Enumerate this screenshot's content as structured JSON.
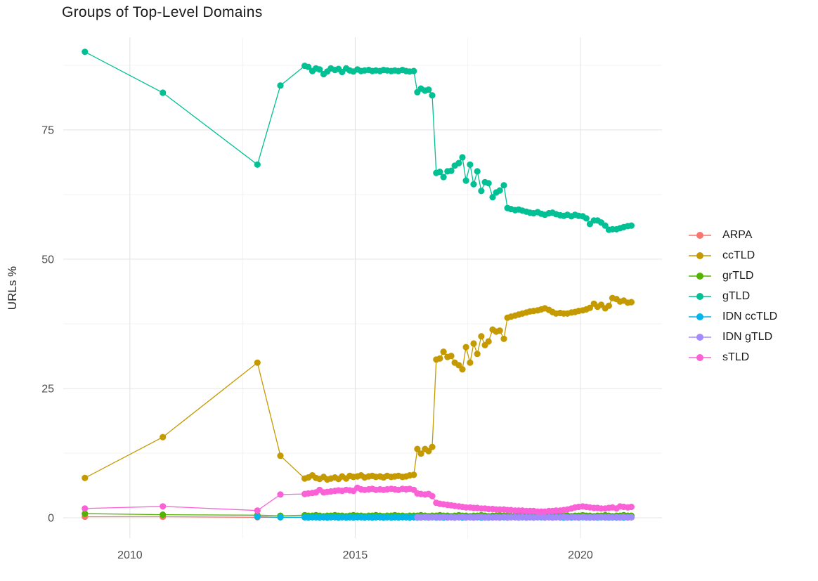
{
  "chart_data": {
    "type": "line",
    "title": "Groups of Top-Level Domains",
    "xlabel": "",
    "ylabel": "URLs %",
    "grid": true,
    "legend_position": "right",
    "x_ticks": [
      2010,
      2015,
      2020
    ],
    "x_minor_ticks": [
      2012.5,
      2017.5
    ],
    "y_ticks": [
      0,
      25,
      50,
      75
    ],
    "y_minor_ticks": [
      12.5,
      37.5,
      62.5,
      87.5
    ],
    "xlim": [
      2008.52,
      2021.81
    ],
    "ylim": [
      -3.94,
      92.93
    ],
    "x_dense": [
      2013.88,
      2013.96,
      2014.05,
      2014.13,
      2014.21,
      2014.3,
      2014.38,
      2014.46,
      2014.55,
      2014.63,
      2014.71,
      2014.8,
      2014.88,
      2014.96,
      2015.05,
      2015.13,
      2015.21,
      2015.3,
      2015.38,
      2015.46,
      2015.55,
      2015.63,
      2015.71,
      2015.8,
      2015.88,
      2015.96,
      2016.05,
      2016.13,
      2016.21,
      2016.3,
      2016.38,
      2016.46,
      2016.55,
      2016.63,
      2016.71,
      2016.8,
      2016.88,
      2016.96,
      2017.05,
      2017.13,
      2017.21,
      2017.3,
      2017.38,
      2017.46,
      2017.55,
      2017.63,
      2017.71,
      2017.8,
      2017.88,
      2017.96,
      2018.05,
      2018.13,
      2018.21,
      2018.3,
      2018.38,
      2018.46,
      2018.55,
      2018.63,
      2018.71,
      2018.8,
      2018.88,
      2018.96,
      2019.05,
      2019.13,
      2019.21,
      2019.3,
      2019.38,
      2019.46,
      2019.55,
      2019.63,
      2019.71,
      2019.8,
      2019.88,
      2019.96,
      2020.05,
      2020.13,
      2020.21,
      2020.3,
      2020.38,
      2020.46,
      2020.55,
      2020.63,
      2020.71,
      2020.8,
      2020.88,
      2020.96,
      2021.05,
      2021.13
    ],
    "series": [
      {
        "name": "ARPA",
        "color": "#F8766D",
        "pre": [
          [
            2009.0,
            0.2
          ],
          [
            2010.73,
            0.2
          ],
          [
            2012.83,
            0.1
          ],
          [
            2013.34,
            0.1
          ]
        ],
        "dense": [
          0.1,
          0.1,
          0.2,
          0.1,
          0.1,
          0.1,
          0.2,
          0.1,
          0.1,
          0.1,
          0.1,
          0.2,
          0.1,
          0.1,
          0.2,
          0.1,
          0.1,
          0.1,
          0.2,
          0.1,
          0.1,
          0.1,
          0.1,
          0.2,
          0.1,
          0.1,
          0.2,
          0.1,
          0.1,
          0.1,
          0.2,
          0.1,
          0.1,
          0.1,
          0.1,
          0.2,
          0.1,
          0.1,
          0.2,
          0.1,
          0.1,
          0.1,
          0.2,
          0.1,
          0.1,
          0.1,
          0.1,
          0.2,
          0.1,
          0.1,
          0.2,
          0.1,
          0.1,
          0.1,
          0.2,
          0.1,
          0.1,
          0.1,
          0.1,
          0.2,
          0.1,
          0.1,
          0.2,
          0.1,
          0.1,
          0.1,
          0.2,
          0.1,
          0.1,
          0.1,
          0.1,
          0.2,
          0.1,
          0.1,
          0.2,
          0.1,
          0.1,
          0.1,
          0.2,
          0.1,
          0.1,
          0.1,
          0.1,
          0.2,
          0.1,
          0.1,
          0.2,
          0.1
        ]
      },
      {
        "name": "ccTLD",
        "color": "#C49A00",
        "pre": [
          [
            2009.0,
            7.7
          ],
          [
            2010.73,
            15.6
          ],
          [
            2012.83,
            30.0
          ],
          [
            2013.34,
            12.0
          ]
        ],
        "dense": [
          7.6,
          7.8,
          8.2,
          7.7,
          7.5,
          7.9,
          7.4,
          7.6,
          7.8,
          7.5,
          8.0,
          7.6,
          8.1,
          7.9,
          8.0,
          8.2,
          7.8,
          8.0,
          8.1,
          7.9,
          8.0,
          7.8,
          8.1,
          7.9,
          8.0,
          8.1,
          7.9,
          8.0,
          8.2,
          8.3,
          13.3,
          12.4,
          13.3,
          12.9,
          13.7,
          30.6,
          30.8,
          32.1,
          31.1,
          31.3,
          30.0,
          29.5,
          28.7,
          33.0,
          30.0,
          33.7,
          31.7,
          35.1,
          33.4,
          34.1,
          36.4,
          36.0,
          36.2,
          34.6,
          38.7,
          38.9,
          39.1,
          39.3,
          39.5,
          39.7,
          39.9,
          40.0,
          40.1,
          40.3,
          40.5,
          40.2,
          39.8,
          39.5,
          39.6,
          39.5,
          39.5,
          39.7,
          39.8,
          40.0,
          40.1,
          40.3,
          40.6,
          41.4,
          40.8,
          41.2,
          40.5,
          41.0,
          42.5,
          42.3,
          41.8,
          42.0,
          41.6,
          41.7
        ]
      },
      {
        "name": "grTLD",
        "color": "#53B400",
        "pre": [
          [
            2009.0,
            0.8
          ],
          [
            2010.73,
            0.6
          ],
          [
            2012.83,
            0.5
          ],
          [
            2013.34,
            0.4
          ]
        ],
        "dense": [
          0.5,
          0.4,
          0.4,
          0.5,
          0.4,
          0.3,
          0.4,
          0.4,
          0.5,
          0.4,
          0.4,
          0.3,
          0.4,
          0.5,
          0.4,
          0.4,
          0.3,
          0.4,
          0.4,
          0.5,
          0.4,
          0.3,
          0.4,
          0.4,
          0.5,
          0.4,
          0.4,
          0.3,
          0.4,
          0.4,
          0.4,
          0.5,
          0.4,
          0.3,
          0.4,
          0.4,
          0.5,
          0.4,
          0.4,
          0.3,
          0.4,
          0.5,
          0.4,
          0.4,
          0.3,
          0.4,
          0.4,
          0.5,
          0.4,
          0.3,
          0.4,
          0.4,
          0.5,
          0.4,
          0.4,
          0.3,
          0.4,
          0.4,
          0.5,
          0.4,
          0.3,
          0.4,
          0.4,
          0.5,
          0.4,
          0.4,
          0.3,
          0.4,
          0.4,
          0.5,
          0.4,
          0.3,
          0.4,
          0.4,
          0.5,
          0.4,
          0.4,
          0.3,
          0.4,
          0.4,
          0.5,
          0.4,
          0.3,
          0.4,
          0.4,
          0.5,
          0.4,
          0.4
        ]
      },
      {
        "name": "gTLD",
        "color": "#00C094",
        "pre": [
          [
            2009.0,
            90.1
          ],
          [
            2010.73,
            82.2
          ],
          [
            2012.83,
            68.3
          ],
          [
            2013.34,
            83.6
          ]
        ],
        "dense": [
          87.4,
          87.2,
          86.4,
          86.9,
          86.7,
          85.8,
          86.3,
          86.9,
          86.6,
          86.8,
          86.2,
          86.9,
          86.5,
          86.3,
          86.7,
          86.4,
          86.5,
          86.6,
          86.4,
          86.5,
          86.4,
          86.6,
          86.5,
          86.4,
          86.5,
          86.4,
          86.6,
          86.4,
          86.3,
          86.4,
          82.3,
          83.0,
          82.6,
          82.8,
          81.7,
          66.7,
          66.9,
          65.9,
          67.0,
          67.1,
          68.1,
          68.6,
          69.7,
          65.2,
          68.3,
          64.5,
          67.0,
          63.2,
          64.9,
          64.7,
          62.0,
          62.9,
          63.3,
          64.3,
          59.9,
          59.7,
          59.5,
          59.6,
          59.4,
          59.2,
          59.0,
          58.9,
          59.1,
          58.8,
          58.6,
          58.9,
          59.0,
          58.7,
          58.5,
          58.4,
          58.6,
          58.3,
          58.6,
          58.4,
          58.3,
          57.9,
          56.8,
          57.5,
          57.5,
          57.1,
          56.5,
          55.7,
          55.8,
          55.8,
          56.0,
          56.2,
          56.4,
          56.5
        ]
      },
      {
        "name": "IDN ccTLD",
        "color": "#00B6EB",
        "pre": [
          [
            2012.83,
            0.2
          ],
          [
            2013.34,
            0.1
          ]
        ],
        "dense": [
          0.1,
          0.05,
          0.1,
          0.1,
          0.05,
          0.1,
          0.05,
          0.1,
          0.1,
          0.05,
          0.1,
          0.05,
          0.1,
          0.05,
          0.1,
          0.1,
          0.05,
          0.1,
          0.05,
          0.1,
          0.1,
          0.05,
          0.1,
          0.05,
          0.1,
          0.05,
          0.1,
          0.1,
          0.05,
          0.1,
          0.05,
          0.1,
          0.1,
          0.05,
          0.1,
          0.05,
          0.1,
          0.05,
          0.1,
          0.1,
          0.05,
          0.1,
          0.05,
          0.1,
          0.1,
          0.05,
          0.1,
          0.05,
          0.1,
          0.05,
          0.1,
          0.1,
          0.05,
          0.1,
          0.05,
          0.1,
          0.1,
          0.05,
          0.1,
          0.05,
          0.1,
          0.05,
          0.1,
          0.1,
          0.05,
          0.1,
          0.05,
          0.1,
          0.1,
          0.05,
          0.1,
          0.05,
          0.1,
          0.05,
          0.1,
          0.1,
          0.05,
          0.1,
          0.05,
          0.1,
          0.1,
          0.05,
          0.1,
          0.05,
          0.1,
          0.05,
          0.1,
          0.1
        ]
      },
      {
        "name": "IDN gTLD",
        "color": "#A58AFF",
        "pre": [],
        "dense_start": 30,
        "dense": [
          0.1,
          0.05,
          0.15,
          0.05,
          0.1,
          0.1,
          0.05,
          0.15,
          0.05,
          0.1,
          0.05,
          0.1,
          0.15,
          0.05,
          0.1,
          0.05,
          0.1,
          0.15,
          0.05,
          0.1,
          0.05,
          0.1,
          0.05,
          0.15,
          0.05,
          0.1,
          0.1,
          0.05,
          0.15,
          0.05,
          0.1,
          0.05,
          0.1,
          0.15,
          0.05,
          0.1,
          0.05,
          0.1,
          0.05,
          0.15,
          0.05,
          0.1,
          0.1,
          0.05,
          0.15,
          0.05,
          0.1,
          0.05,
          0.1,
          0.15,
          0.05,
          0.1,
          0.05,
          0.1,
          0.05,
          0.15,
          0.05,
          0.1
        ]
      },
      {
        "name": "sTLD",
        "color": "#FB61D7",
        "pre": [
          [
            2009.0,
            1.8
          ],
          [
            2010.73,
            2.2
          ],
          [
            2012.83,
            1.4
          ],
          [
            2013.34,
            4.5
          ]
        ],
        "dense": [
          4.6,
          4.7,
          4.8,
          4.9,
          5.4,
          4.9,
          5.0,
          5.1,
          5.2,
          5.3,
          5.2,
          5.4,
          5.3,
          5.2,
          5.8,
          5.5,
          5.4,
          5.5,
          5.6,
          5.4,
          5.5,
          5.4,
          5.5,
          5.6,
          5.5,
          5.4,
          5.6,
          5.5,
          5.6,
          5.4,
          4.7,
          4.6,
          4.5,
          4.6,
          4.2,
          2.9,
          2.7,
          2.6,
          2.5,
          2.4,
          2.3,
          2.2,
          2.1,
          2.0,
          2.0,
          1.9,
          1.9,
          1.8,
          1.8,
          1.7,
          1.7,
          1.6,
          1.6,
          1.6,
          1.5,
          1.5,
          1.4,
          1.4,
          1.4,
          1.3,
          1.3,
          1.3,
          1.2,
          1.2,
          1.2,
          1.3,
          1.3,
          1.4,
          1.4,
          1.5,
          1.6,
          1.8,
          2.0,
          2.1,
          2.2,
          2.1,
          2.0,
          1.9,
          1.9,
          1.8,
          1.8,
          1.9,
          2.0,
          1.8,
          2.2,
          2.1,
          2.0,
          2.1
        ]
      }
    ],
    "style": {
      "grid_major_color": "#e4e4e4",
      "grid_minor_color": "#efefef",
      "tick_label_color": "#4d4d4d",
      "title_color": "#1a1a1a",
      "point_radius": 4.6,
      "line_width": 1.3
    }
  }
}
